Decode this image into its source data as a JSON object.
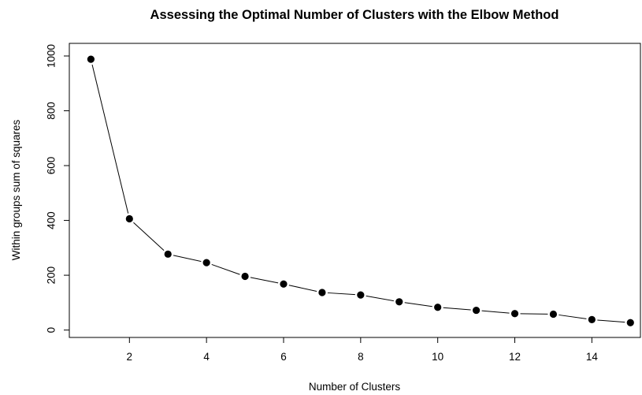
{
  "chart_data": {
    "type": "line",
    "title": "Assessing the Optimal Number of Clusters with the Elbow Method",
    "xlabel": "Number of Clusters",
    "ylabel": "Within groups sum of squares",
    "x": [
      1,
      2,
      3,
      4,
      5,
      6,
      7,
      8,
      9,
      10,
      11,
      12,
      13,
      14,
      15
    ],
    "series": [
      {
        "values": [
          988,
          406,
          277,
          246,
          196,
          168,
          137,
          128,
          103,
          83,
          72,
          60,
          58,
          38,
          27
        ]
      }
    ],
    "xlim": [
      0.44,
      15.26
    ],
    "ylim": [
      -27,
      1046
    ],
    "xticks": [
      2,
      4,
      6,
      8,
      10,
      12,
      14
    ],
    "yticks": [
      0,
      200,
      400,
      600,
      800,
      1000
    ],
    "markers": "filled-circle",
    "grid": false,
    "color": "#000000"
  }
}
